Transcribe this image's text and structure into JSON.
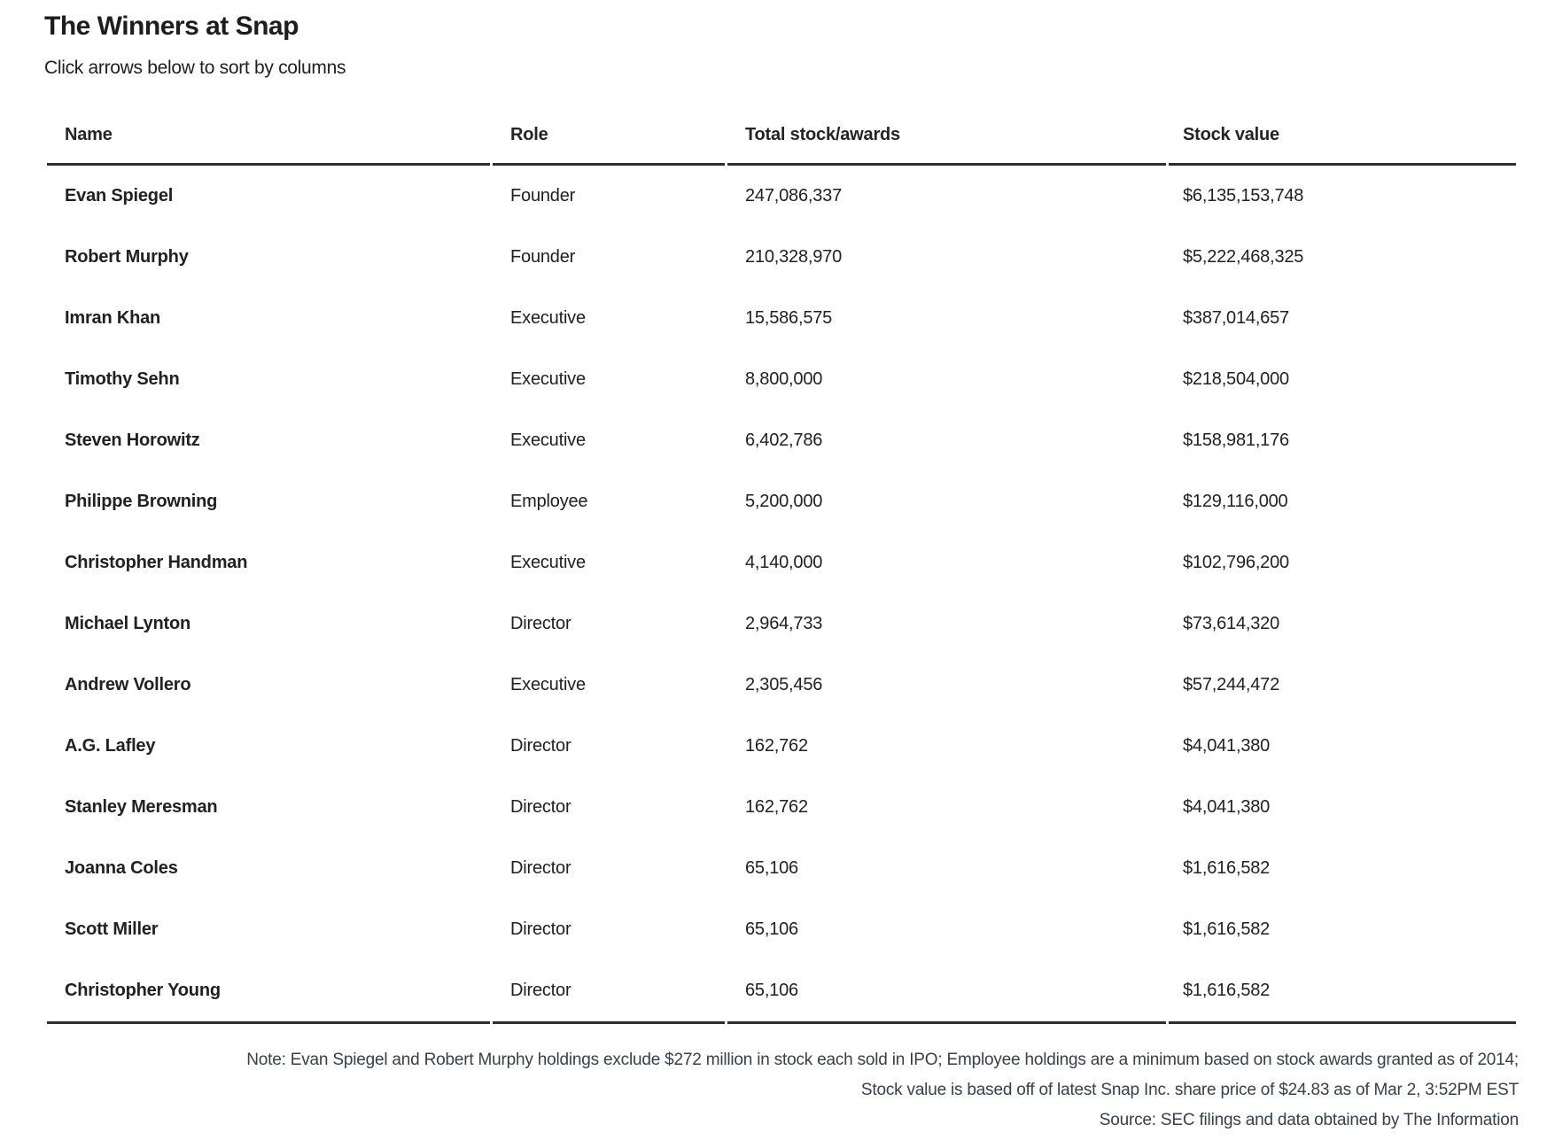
{
  "chart_data": {
    "type": "table",
    "title": "The Winners at Snap",
    "subtitle": "Click arrows below to sort by columns",
    "columns": [
      "Name",
      "Role",
      "Total stock/awards",
      "Stock value"
    ],
    "rows": [
      {
        "name": "Evan Spiegel",
        "role": "Founder",
        "stock": "247,086,337",
        "value": "$6,135,153,748"
      },
      {
        "name": "Robert Murphy",
        "role": "Founder",
        "stock": "210,328,970",
        "value": "$5,222,468,325"
      },
      {
        "name": "Imran Khan",
        "role": "Executive",
        "stock": "15,586,575",
        "value": "$387,014,657"
      },
      {
        "name": "Timothy Sehn",
        "role": "Executive",
        "stock": "8,800,000",
        "value": "$218,504,000"
      },
      {
        "name": "Steven Horowitz",
        "role": "Executive",
        "stock": "6,402,786",
        "value": "$158,981,176"
      },
      {
        "name": "Philippe Browning",
        "role": "Employee",
        "stock": "5,200,000",
        "value": "$129,116,000"
      },
      {
        "name": "Christopher Handman",
        "role": "Executive",
        "stock": "4,140,000",
        "value": "$102,796,200"
      },
      {
        "name": "Michael Lynton",
        "role": "Director",
        "stock": "2,964,733",
        "value": "$73,614,320"
      },
      {
        "name": "Andrew Vollero",
        "role": "Executive",
        "stock": "2,305,456",
        "value": "$57,244,472"
      },
      {
        "name": "A.G. Lafley",
        "role": "Director",
        "stock": "162,762",
        "value": "$4,041,380"
      },
      {
        "name": "Stanley Meresman",
        "role": "Director",
        "stock": "162,762",
        "value": "$4,041,380"
      },
      {
        "name": "Joanna Coles",
        "role": "Director",
        "stock": "65,106",
        "value": "$1,616,582"
      },
      {
        "name": "Scott Miller",
        "role": "Director",
        "stock": "65,106",
        "value": "$1,616,582"
      },
      {
        "name": "Christopher Young",
        "role": "Director",
        "stock": "65,106",
        "value": "$1,616,582"
      }
    ],
    "notes": [
      "Note: Evan Spiegel and Robert Murphy holdings exclude $272 million in stock each sold in IPO; Employee holdings are a minimum based on stock awards granted as of 2014;",
      "Stock value is based off of latest Snap Inc. share price of $24.83 as of Mar 2, 3:52PM EST"
    ],
    "source": "Source: SEC filings and data obtained by The Information",
    "layout": {
      "sort_arrows_visible": false,
      "notes_alignment": "right"
    }
  },
  "colors": {
    "text": "#212121",
    "note_text": "#36404a",
    "border": "#2f2f2f"
  }
}
